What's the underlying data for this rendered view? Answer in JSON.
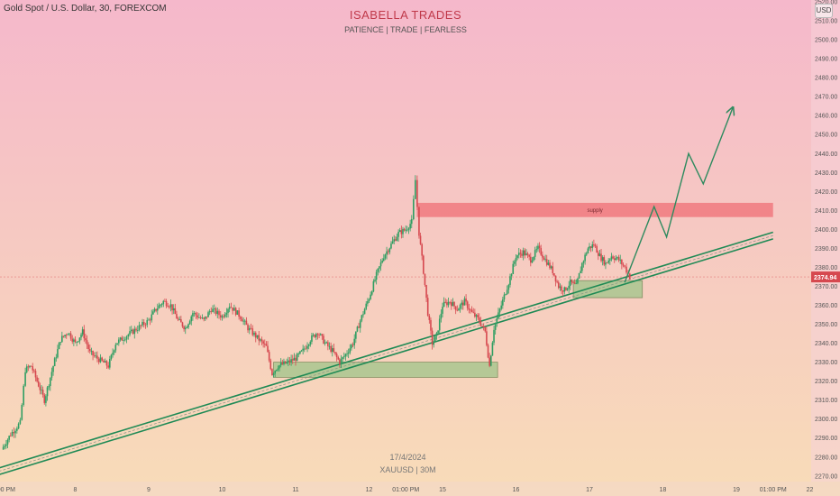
{
  "header": {
    "symbol": "Gold Spot / U.S. Dollar, 30, FOREXCOM",
    "brand": "ISABELLA TRADES",
    "tagline": "PATIENCE  |  TRADE  |  FEARLESS",
    "currency": "USD"
  },
  "footer": {
    "date": "17/4/2024",
    "symbol": "XAUUSD  |  30M"
  },
  "colors": {
    "bg_top": "#f5b8cb",
    "bg_bottom": "#f8dcb8",
    "up": "#2f9e62",
    "down": "#d6484f",
    "trend": "#1f8a55",
    "supply_zone": "#f0747b",
    "demand_zone": "#9fc58a",
    "price_tag": "#d6484f",
    "projection": "#2d8a5e"
  },
  "chart_data": {
    "type": "candlestick",
    "title": "Gold Spot / U.S. Dollar, 30, FOREXCOM",
    "ylim": [
      2268,
      2520
    ],
    "xlim": [
      0,
      21
    ],
    "y_ticks": [
      "2520.00",
      "2510.00",
      "2500.00",
      "2490.00",
      "2480.00",
      "2470.00",
      "2460.00",
      "2450.00",
      "2440.00",
      "2430.00",
      "2420.00",
      "2410.00",
      "2400.00",
      "2390.00",
      "2380.00",
      "2370.00",
      "2360.00",
      "2350.00",
      "2340.00",
      "2330.00",
      "2320.00",
      "2310.00",
      "2300.00",
      "2290.00",
      "2280.00",
      "2270.00"
    ],
    "x_ticks": [
      {
        "x": 0.0,
        "label": "01:00 PM"
      },
      {
        "x": 1.0,
        "label": "8"
      },
      {
        "x": 2.0,
        "label": "9"
      },
      {
        "x": 3.0,
        "label": "10"
      },
      {
        "x": 4.0,
        "label": "11"
      },
      {
        "x": 5.0,
        "label": "12"
      },
      {
        "x": 5.5,
        "label": "01:00 PM"
      },
      {
        "x": 6.0,
        "label": "15"
      },
      {
        "x": 7.0,
        "label": "16"
      },
      {
        "x": 8.0,
        "label": "17"
      },
      {
        "x": 9.0,
        "label": "18"
      },
      {
        "x": 10.0,
        "label": "19"
      },
      {
        "x": 10.5,
        "label": "01:00 PM"
      },
      {
        "x": 11.0,
        "label": "22"
      }
    ],
    "path": [
      [
        0.0,
        2284
      ],
      [
        0.12,
        2292
      ],
      [
        0.25,
        2298
      ],
      [
        0.32,
        2326
      ],
      [
        0.4,
        2328
      ],
      [
        0.5,
        2318
      ],
      [
        0.58,
        2310
      ],
      [
        0.7,
        2328
      ],
      [
        0.8,
        2342
      ],
      [
        0.9,
        2346
      ],
      [
        1.0,
        2340
      ],
      [
        1.1,
        2346
      ],
      [
        1.2,
        2335
      ],
      [
        1.3,
        2332
      ],
      [
        1.45,
        2328
      ],
      [
        1.55,
        2340
      ],
      [
        1.7,
        2344
      ],
      [
        1.85,
        2348
      ],
      [
        2.0,
        2352
      ],
      [
        2.1,
        2358
      ],
      [
        2.2,
        2362
      ],
      [
        2.3,
        2360
      ],
      [
        2.4,
        2352
      ],
      [
        2.5,
        2348
      ],
      [
        2.6,
        2356
      ],
      [
        2.75,
        2352
      ],
      [
        2.85,
        2358
      ],
      [
        3.0,
        2354
      ],
      [
        3.1,
        2360
      ],
      [
        3.25,
        2354
      ],
      [
        3.35,
        2348
      ],
      [
        3.5,
        2342
      ],
      [
        3.6,
        2338
      ],
      [
        3.68,
        2324
      ],
      [
        3.76,
        2328
      ],
      [
        3.9,
        2330
      ],
      [
        4.0,
        2332
      ],
      [
        4.1,
        2336
      ],
      [
        4.2,
        2342
      ],
      [
        4.3,
        2346
      ],
      [
        4.4,
        2340
      ],
      [
        4.5,
        2336
      ],
      [
        4.6,
        2330
      ],
      [
        4.68,
        2334
      ],
      [
        4.78,
        2340
      ],
      [
        4.88,
        2352
      ],
      [
        5.0,
        2364
      ],
      [
        5.1,
        2376
      ],
      [
        5.2,
        2386
      ],
      [
        5.3,
        2392
      ],
      [
        5.4,
        2398
      ],
      [
        5.5,
        2400
      ],
      [
        5.58,
        2404
      ],
      [
        5.63,
        2426
      ],
      [
        5.68,
        2398
      ],
      [
        5.74,
        2378
      ],
      [
        5.8,
        2356
      ],
      [
        5.86,
        2340
      ],
      [
        5.92,
        2344
      ],
      [
        6.0,
        2360
      ],
      [
        6.1,
        2362
      ],
      [
        6.2,
        2358
      ],
      [
        6.3,
        2362
      ],
      [
        6.4,
        2356
      ],
      [
        6.5,
        2352
      ],
      [
        6.58,
        2346
      ],
      [
        6.64,
        2328
      ],
      [
        6.7,
        2348
      ],
      [
        6.8,
        2360
      ],
      [
        6.9,
        2372
      ],
      [
        7.0,
        2386
      ],
      [
        7.1,
        2388
      ],
      [
        7.2,
        2384
      ],
      [
        7.3,
        2390
      ],
      [
        7.4,
        2384
      ],
      [
        7.5,
        2378
      ],
      [
        7.58,
        2370
      ],
      [
        7.66,
        2368
      ],
      [
        7.74,
        2372
      ],
      [
        7.82,
        2370
      ],
      [
        7.9,
        2382
      ],
      [
        7.98,
        2390
      ],
      [
        8.06,
        2392
      ],
      [
        8.14,
        2386
      ],
      [
        8.22,
        2382
      ],
      [
        8.3,
        2386
      ],
      [
        8.4,
        2384
      ],
      [
        8.48,
        2380
      ],
      [
        8.55,
        2374.94
      ]
    ],
    "supply_zone": {
      "x0": 5.65,
      "x1": 10.5,
      "y0": 2406.5,
      "y1": 2414,
      "label": "supply"
    },
    "demand_zones": [
      {
        "x0": 3.7,
        "x1": 6.75,
        "y0": 2322,
        "y1": 2330
      },
      {
        "x0": 7.78,
        "x1": 8.72,
        "y0": 2364,
        "y1": 2373
      }
    ],
    "trendline": {
      "from": [
        -0.1,
        2270
      ],
      "to": [
        10.5,
        2395
      ],
      "offset": 3.5
    },
    "projection": [
      [
        8.48,
        2372
      ],
      [
        8.88,
        2412
      ],
      [
        9.05,
        2396
      ],
      [
        9.35,
        2440
      ],
      [
        9.55,
        2424
      ],
      [
        9.95,
        2464
      ]
    ],
    "last_price": {
      "value": 2374.94,
      "label": "2374.94"
    },
    "grid": false
  }
}
